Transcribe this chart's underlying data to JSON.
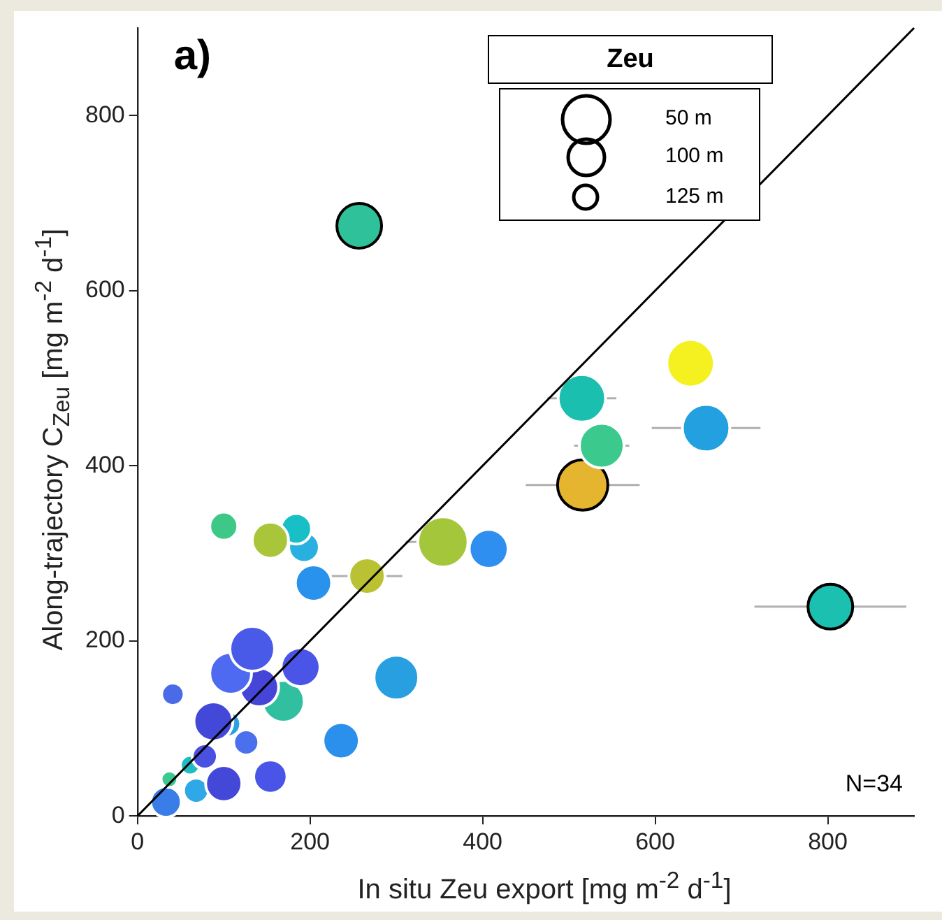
{
  "chart_data": {
    "type": "bubble",
    "xlabel": "In situ Zeu export [mg m$^{-2}$ d$^{-1}$]",
    "ylabel": "Along-trajectory C$_{Zeu}$ [mg m$^{-2}$ d$^{-1}$]",
    "legend_title": "Zeu",
    "xlim": [
      0,
      900
    ],
    "ylim": [
      0,
      900
    ],
    "xticks": [
      0,
      200,
      400,
      600,
      800
    ],
    "yticks": [
      0,
      200,
      400,
      600,
      800
    ],
    "grid": false,
    "annotations": [
      "a)",
      "N=34",
      "50 m",
      "100 m",
      "125 m"
    ],
    "series": [
      {
        "color": "#ffffff",
        "x": [
          33,
          68,
          100,
          154,
          37,
          61,
          78,
          126,
          236,
          105,
          88,
          300,
          41,
          169,
          189,
          141,
          108,
          133,
          204,
          266,
          193,
          184,
          154,
          100,
          407,
          354,
          659,
          538,
          515,
          641
        ],
        "values": [
          16,
          29,
          37,
          45,
          42,
          58,
          68,
          84,
          86,
          105,
          108,
          158,
          139,
          131,
          170,
          147,
          163,
          191,
          266,
          274,
          307,
          328,
          315,
          331,
          305,
          313,
          443,
          423,
          477,
          517
        ],
        "sizes": [
          0.37,
          0.25,
          0.52,
          0.44,
          0.11,
          0.15,
          0.25,
          0.25,
          0.52,
          0.25,
          0.6,
          0.79,
          0.2,
          0.69,
          0.6,
          0.6,
          0.69,
          0.79,
          0.52,
          0.52,
          0.37,
          0.37,
          0.52,
          0.31,
          0.6,
          1,
          0.89,
          0.79,
          0.89,
          0.89
        ],
        "colors": [
          "#3a7ce8",
          "#30a8e8",
          "#4448d8",
          "#4a55e8",
          "#3cc890",
          "#20bcc0",
          "#4a50e0",
          "#4a70ee",
          "#2a90ec",
          "#2aa0e0",
          "#4448d8",
          "#279fe0",
          "#4a6ae8",
          "#30c0a0",
          "#4a55e8",
          "#4545d8",
          "#4d6af0",
          "#4a5ae8",
          "#2892ec",
          "#bac234",
          "#2ab0e0",
          "#19bfc6",
          "#a9c63a",
          "#3dc888",
          "#2e8ff0",
          "#a3c63a",
          "#22a0e0",
          "#3cc98e",
          "#1bbfb0",
          "#f5f01f"
        ],
        "xerrors": [
          null,
          null,
          null,
          null,
          null,
          null,
          null,
          null,
          null,
          null,
          null,
          null,
          null,
          null,
          null,
          null,
          null,
          null,
          null,
          41,
          null,
          null,
          null,
          null,
          null,
          43,
          63,
          32,
          40,
          null
        ]
      },
      {
        "color": "#000000",
        "x": [
          257,
          516,
          803
        ],
        "values": [
          674,
          378,
          239
        ],
        "sizes": [
          0.79,
          1,
          0.79
        ],
        "colors": [
          "#2fc19a",
          "#e6b530",
          "#1cc0b0"
        ],
        "xerrors": [
          null,
          66,
          88
        ]
      },
      {
        "type": "line",
        "color": "#000000",
        "marker": "none",
        "x": [
          0,
          900
        ],
        "values": [
          0,
          900
        ]
      }
    ]
  }
}
